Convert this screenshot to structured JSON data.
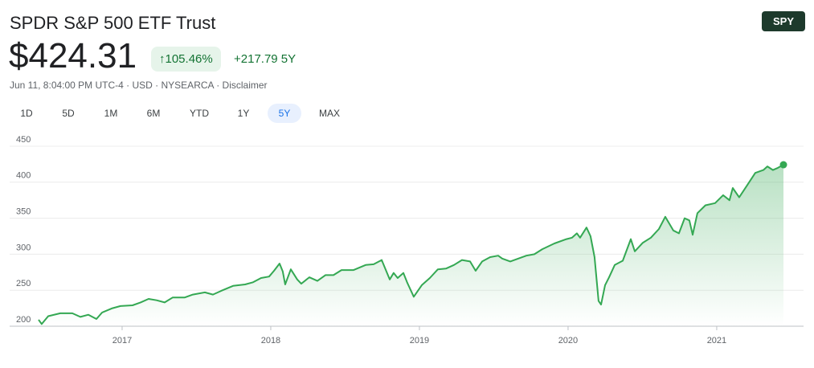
{
  "header": {
    "title": "SPDR S&P 500 ETF Trust",
    "ticker": "SPY",
    "price": "$424.31",
    "change_percent": "↑105.46%",
    "change": "+217.79 5Y",
    "subtitle": "Jun 11, 8:04:00 PM UTC-4 · USD · NYSEARCA · Disclaimer",
    "ranges": [
      "1D",
      "5D",
      "1M",
      "6M",
      "YTD",
      "1Y",
      "5Y",
      "MAX"
    ]
  },
  "chart_data": {
    "type": "line",
    "area": true,
    "color": "#34a853",
    "x": [
      2016.438,
      2016.459,
      2016.503,
      2016.584,
      2016.665,
      2016.719,
      2016.773,
      2016.827,
      2016.865,
      2016.935,
      2016.989,
      2017.07,
      2017.124,
      2017.178,
      2017.232,
      2017.286,
      2017.341,
      2017.422,
      2017.476,
      2017.557,
      2017.611,
      2017.665,
      2017.746,
      2017.827,
      2017.881,
      2017.935,
      2017.989,
      2018.022,
      2018.059,
      2018.081,
      2018.097,
      2018.135,
      2018.178,
      2018.205,
      2018.259,
      2018.314,
      2018.368,
      2018.422,
      2018.476,
      2018.557,
      2018.638,
      2018.692,
      2018.746,
      2018.8,
      2018.827,
      2018.854,
      2018.892,
      2018.919,
      2018.962,
      2019.016,
      2019.07,
      2019.124,
      2019.178,
      2019.232,
      2019.286,
      2019.341,
      2019.378,
      2019.422,
      2019.476,
      2019.53,
      2019.557,
      2019.611,
      2019.665,
      2019.719,
      2019.773,
      2019.827,
      2019.908,
      2019.989,
      2020.027,
      2020.059,
      2020.081,
      2020.124,
      2020.151,
      2020.178,
      2020.205,
      2020.222,
      2020.249,
      2020.276,
      2020.314,
      2020.368,
      2020.422,
      2020.449,
      2020.503,
      2020.557,
      2020.611,
      2020.654,
      2020.708,
      2020.746,
      2020.784,
      2020.816,
      2020.838,
      2020.87,
      2020.924,
      2020.989,
      2021.043,
      2021.086,
      2021.108,
      2021.151,
      2021.205,
      2021.259,
      2021.314,
      2021.341,
      2021.378,
      2021.411,
      2021.449
    ],
    "values": [
      209,
      203,
      214,
      218,
      218,
      213,
      216,
      210,
      219,
      225,
      228,
      229,
      233,
      238,
      236,
      233,
      240,
      240,
      244,
      247,
      244,
      249,
      256,
      258,
      261,
      267,
      269,
      277,
      287,
      276,
      258,
      279,
      265,
      259,
      268,
      263,
      271,
      271,
      278,
      278,
      285,
      286,
      292,
      265,
      274,
      267,
      274,
      260,
      241,
      257,
      267,
      279,
      280,
      285,
      292,
      290,
      277,
      290,
      296,
      298,
      294,
      290,
      294,
      298,
      300,
      307,
      315,
      321,
      323,
      329,
      323,
      337,
      325,
      296,
      235,
      230,
      257,
      268,
      285,
      291,
      321,
      304,
      316,
      323,
      335,
      352,
      333,
      329,
      350,
      347,
      327,
      357,
      368,
      371,
      382,
      375,
      392,
      379,
      396,
      413,
      417,
      422,
      417,
      420,
      424.31
    ],
    "xlim": [
      2016.438,
      2021.449
    ],
    "xticks": [
      2017,
      2018,
      2019,
      2020,
      2021
    ],
    "ylim": [
      200,
      450
    ],
    "yticks": [
      200,
      250,
      300,
      350,
      400,
      450
    ],
    "grid": true
  }
}
